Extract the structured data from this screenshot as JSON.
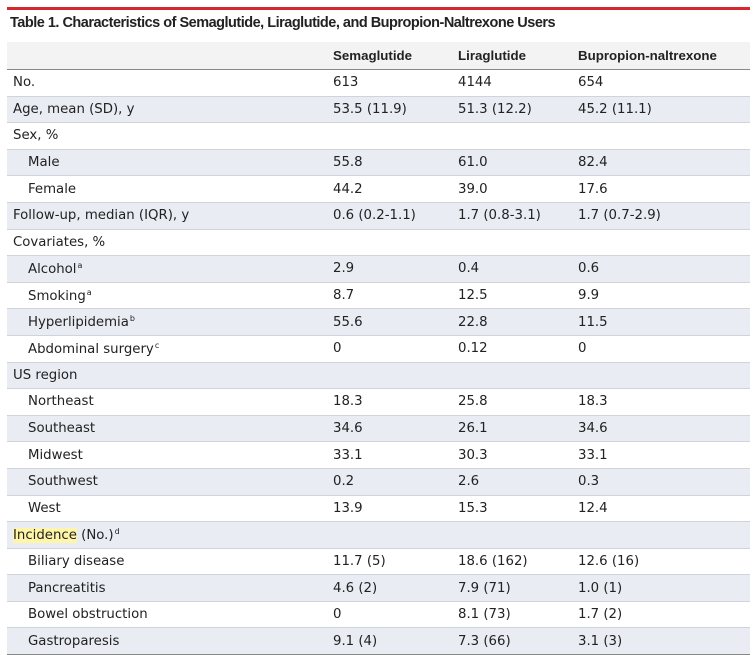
{
  "title": "Table 1. Characteristics of Semaglutide, Liraglutide, and Bupropion-Naltrexone Users",
  "columns": [
    "",
    "Semaglutide",
    "Liraglutide",
    "Bupropion-naltrexone"
  ],
  "rows": [
    {
      "label": "No.",
      "sup": "",
      "sub": false,
      "values": [
        "613",
        "4144",
        "654"
      ]
    },
    {
      "label": "Age, mean (SD), y",
      "sup": "",
      "sub": false,
      "values": [
        "53.5 (11.9)",
        "51.3 (12.2)",
        "45.2 (11.1)"
      ]
    },
    {
      "label": "Sex, %",
      "sup": "",
      "sub": false,
      "values": [
        "",
        "",
        ""
      ]
    },
    {
      "label": "Male",
      "sup": "",
      "sub": true,
      "values": [
        "55.8",
        "61.0",
        "82.4"
      ]
    },
    {
      "label": "Female",
      "sup": "",
      "sub": true,
      "values": [
        "44.2",
        "39.0",
        "17.6"
      ]
    },
    {
      "label": "Follow-up, median (IQR), y",
      "sup": "",
      "sub": false,
      "values": [
        "0.6 (0.2-1.1)",
        "1.7 (0.8-3.1)",
        "1.7 (0.7-2.9)"
      ]
    },
    {
      "label": "Covariates, %",
      "sup": "",
      "sub": false,
      "values": [
        "",
        "",
        ""
      ]
    },
    {
      "label": "Alcohol",
      "sup": "a",
      "sub": true,
      "values": [
        "2.9",
        "0.4",
        "0.6"
      ]
    },
    {
      "label": "Smoking",
      "sup": "a",
      "sub": true,
      "values": [
        "8.7",
        "12.5",
        "9.9"
      ]
    },
    {
      "label": "Hyperlipidemia",
      "sup": "b",
      "sub": true,
      "values": [
        "55.6",
        "22.8",
        "11.5"
      ]
    },
    {
      "label": "Abdominal surgery",
      "sup": "c",
      "sub": true,
      "values": [
        "0",
        "0.12",
        "0"
      ]
    },
    {
      "label": "US region",
      "sup": "",
      "sub": false,
      "values": [
        "",
        "",
        ""
      ]
    },
    {
      "label": "Northeast",
      "sup": "",
      "sub": true,
      "values": [
        "18.3",
        "25.8",
        "18.3"
      ]
    },
    {
      "label": "Southeast",
      "sup": "",
      "sub": true,
      "values": [
        "34.6",
        "26.1",
        "34.6"
      ]
    },
    {
      "label": "Midwest",
      "sup": "",
      "sub": true,
      "values": [
        "33.1",
        "30.3",
        "33.1"
      ]
    },
    {
      "label": "Southwest",
      "sup": "",
      "sub": true,
      "values": [
        "0.2",
        "2.6",
        "0.3"
      ]
    },
    {
      "label": "West",
      "sup": "",
      "sub": true,
      "values": [
        "13.9",
        "15.3",
        "12.4"
      ]
    },
    {
      "label": "Incidence (No.)",
      "highlight": "Incidence",
      "sup": "d",
      "sub": false,
      "values": [
        "",
        "",
        ""
      ]
    },
    {
      "label": "Biliary disease",
      "sup": "",
      "sub": true,
      "values": [
        "11.7 (5)",
        "18.6 (162)",
        "12.6 (16)"
      ]
    },
    {
      "label": "Pancreatitis",
      "sup": "",
      "sub": true,
      "values": [
        "4.6 (2)",
        "7.9 (71)",
        "1.0 (1)"
      ]
    },
    {
      "label": "Bowel obstruction",
      "sup": "",
      "sub": true,
      "values": [
        "0",
        "8.1 (73)",
        "1.7 (2)"
      ]
    },
    {
      "label": "Gastroparesis",
      "sup": "",
      "sub": true,
      "values": [
        "9.1 (4)",
        "7.3 (66)",
        "3.1 (3)"
      ]
    }
  ],
  "colors": {
    "accent_bar": "#d6262e",
    "band": "#e9ecf3",
    "highlight": "#fff5a8"
  }
}
